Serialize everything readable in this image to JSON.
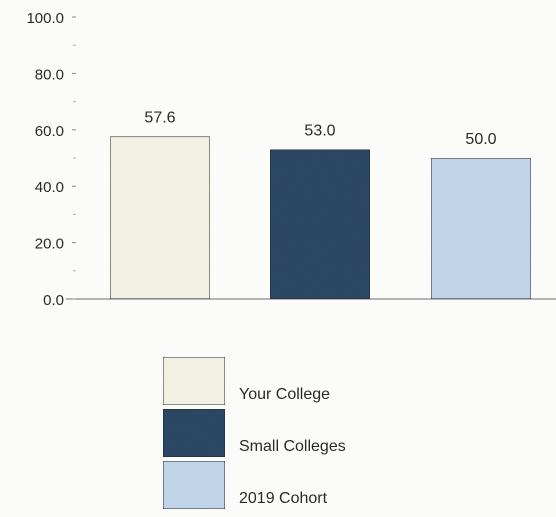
{
  "chart_data": {
    "type": "bar",
    "categories": [
      "Your College",
      "Small Colleges",
      "2019 Cohort"
    ],
    "values": [
      57.6,
      53.0,
      50.0
    ],
    "value_labels": [
      "57.6",
      "53.0",
      "50.0"
    ],
    "ylim": [
      0,
      100
    ],
    "yticks": [
      0,
      20,
      40,
      60,
      80,
      100
    ],
    "ytick_labels": [
      "0.0",
      "20.0",
      "40.0",
      "60.0",
      "80.0",
      "100.0"
    ],
    "minor_tick_step": 10,
    "title": "",
    "xlabel": "",
    "ylabel": "",
    "grid": false,
    "legend_position": "bottom-center",
    "colors": [
      "#f8f6e8",
      "#2d4a66",
      "#c4d9ec"
    ],
    "legend": [
      {
        "label": "Your College",
        "color": "#f8f6e8"
      },
      {
        "label": "Small Colleges",
        "color": "#2d4a66"
      },
      {
        "label": "2019 Cohort",
        "color": "#c4d9ec"
      }
    ]
  }
}
